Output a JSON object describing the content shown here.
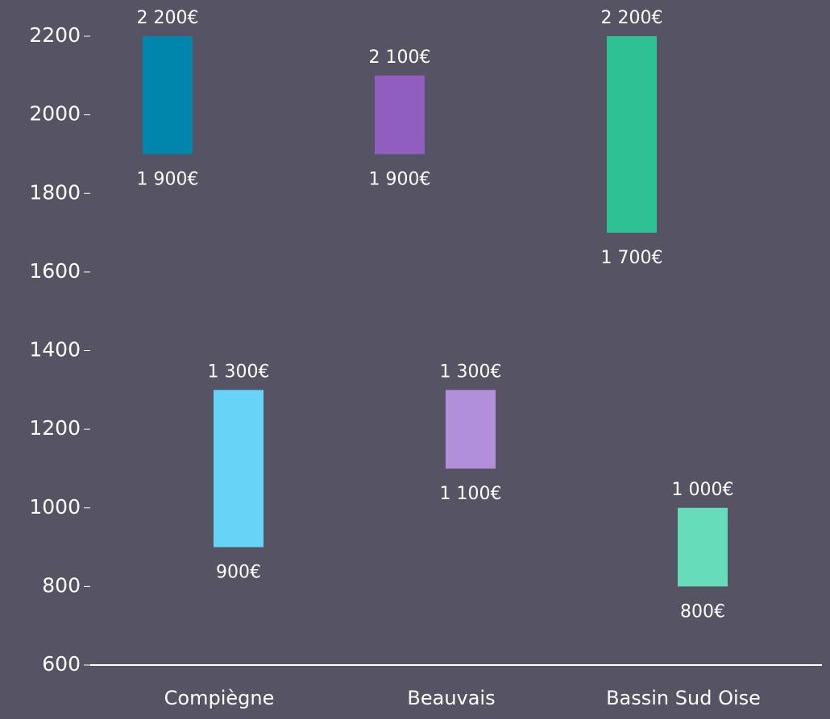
{
  "chart_data": {
    "type": "floating-bar",
    "categories": [
      "Compiègne",
      "Beauvais",
      "Bassin Sud Oise"
    ],
    "series": [
      {
        "colors": [
          "#0086ad",
          "#8f5ebf",
          "#2ec194"
        ],
        "values": [
          [
            1900,
            2200
          ],
          [
            1900,
            2100
          ],
          [
            1700,
            2200
          ]
        ],
        "value_labels": [
          [
            "1 900€",
            "2 200€"
          ],
          [
            "1 900€",
            "2 100€"
          ],
          [
            "1 700€",
            "2 200€"
          ]
        ]
      },
      {
        "colors": [
          "#66d3f7",
          "#b28fd9",
          "#67dcbb"
        ],
        "values": [
          [
            900,
            1300
          ],
          [
            1100,
            1300
          ],
          [
            800,
            1000
          ]
        ],
        "value_labels": [
          [
            "900€",
            "1 300€"
          ],
          [
            "1 100€",
            "1 300€"
          ],
          [
            "800€",
            "1 000€"
          ]
        ]
      }
    ],
    "ylim": [
      600,
      2200
    ],
    "yticks": [
      600,
      800,
      1000,
      1200,
      1400,
      1600,
      1800,
      2000,
      2200
    ],
    "grid": false
  }
}
